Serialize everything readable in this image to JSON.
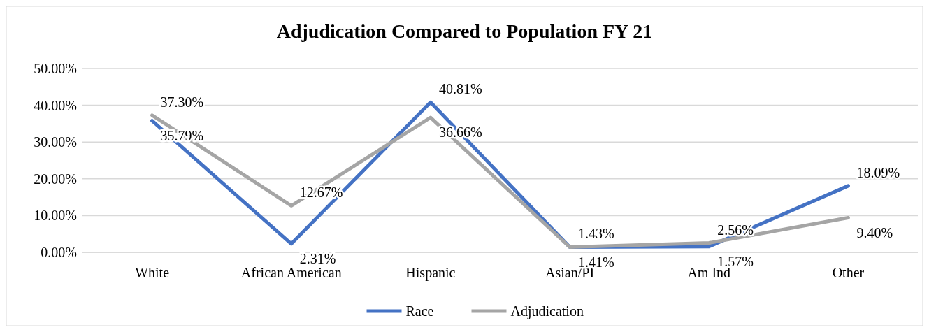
{
  "chart_data": {
    "type": "line",
    "title": "Adjudication Compared to Population FY 21",
    "categories": [
      "White",
      "African American",
      "Hispanic",
      "Asian/PI",
      "Am Ind",
      "Other"
    ],
    "series": [
      {
        "name": "Race",
        "color": "#4472c4",
        "values": [
          35.79,
          2.31,
          40.81,
          1.41,
          1.57,
          18.09
        ],
        "value_labels": [
          "35.79%",
          "2.31%",
          "40.81%",
          "1.41%",
          "1.57%",
          "18.09%"
        ]
      },
      {
        "name": "Adjudication",
        "color": "#a5a5a5",
        "values": [
          37.3,
          12.67,
          36.66,
          1.43,
          2.56,
          9.4
        ],
        "value_labels": [
          "37.30%",
          "12.67%",
          "36.66%",
          "1.43%",
          "2.56%",
          "9.40%"
        ]
      }
    ],
    "ylim": [
      0,
      50
    ],
    "yticks": [
      {
        "value": 0,
        "label": "0.00%"
      },
      {
        "value": 10,
        "label": "10.00%"
      },
      {
        "value": 20,
        "label": "20.00%"
      },
      {
        "value": 30,
        "label": "30.00%"
      },
      {
        "value": 40,
        "label": "40.00%"
      },
      {
        "value": 50,
        "label": "50.00%"
      }
    ],
    "grid": "y",
    "legend": "bottom",
    "marker": "none",
    "line_style": "solid"
  }
}
